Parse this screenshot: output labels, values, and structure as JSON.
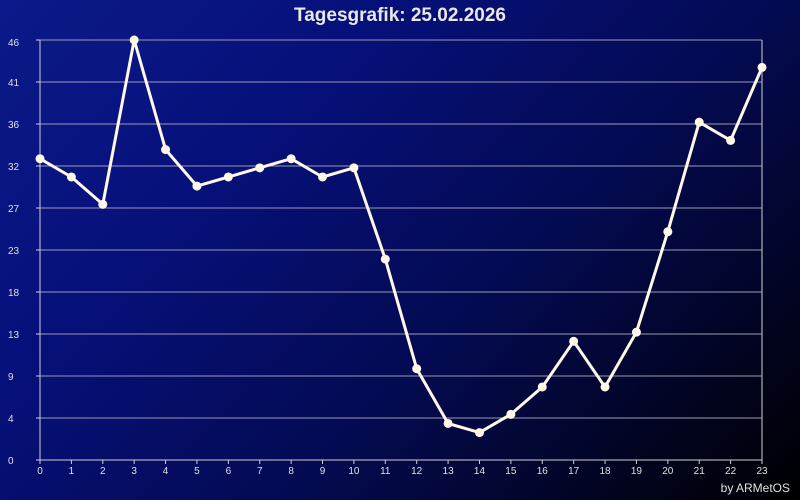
{
  "credit": "by ARMetOS",
  "colors": {
    "line": "#fff8e7",
    "grid": "#9a9ab0",
    "axis": "#d0d0d0",
    "text": "#e0e0e0"
  },
  "chart_data": {
    "type": "line",
    "title": "Tagesgrafik: 25.02.2026",
    "xlabel": "",
    "ylabel": "",
    "x": [
      0,
      1,
      2,
      3,
      4,
      5,
      6,
      7,
      8,
      9,
      10,
      11,
      12,
      13,
      14,
      15,
      16,
      17,
      18,
      19,
      20,
      21,
      22,
      23
    ],
    "x_tick_labels": [
      "0",
      "1",
      "2",
      "3",
      "4",
      "5",
      "6",
      "7",
      "8",
      "9",
      "10",
      "11",
      "12",
      "13",
      "14",
      "15",
      "16",
      "17",
      "18",
      "19",
      "20",
      "21",
      "22",
      "23"
    ],
    "y_tick_labels": [
      "0",
      "4",
      "9",
      "13",
      "18",
      "23",
      "27",
      "32",
      "36",
      "41",
      "46"
    ],
    "ylim": [
      0,
      46
    ],
    "xlim": [
      0,
      23
    ],
    "grid": true,
    "legend": "none",
    "series": [
      {
        "values": [
          33,
          31,
          28,
          46,
          34,
          30,
          31,
          32,
          33,
          31,
          32,
          22,
          10,
          4,
          3,
          5,
          8,
          13,
          8,
          14,
          25,
          37,
          35,
          43
        ]
      }
    ]
  }
}
